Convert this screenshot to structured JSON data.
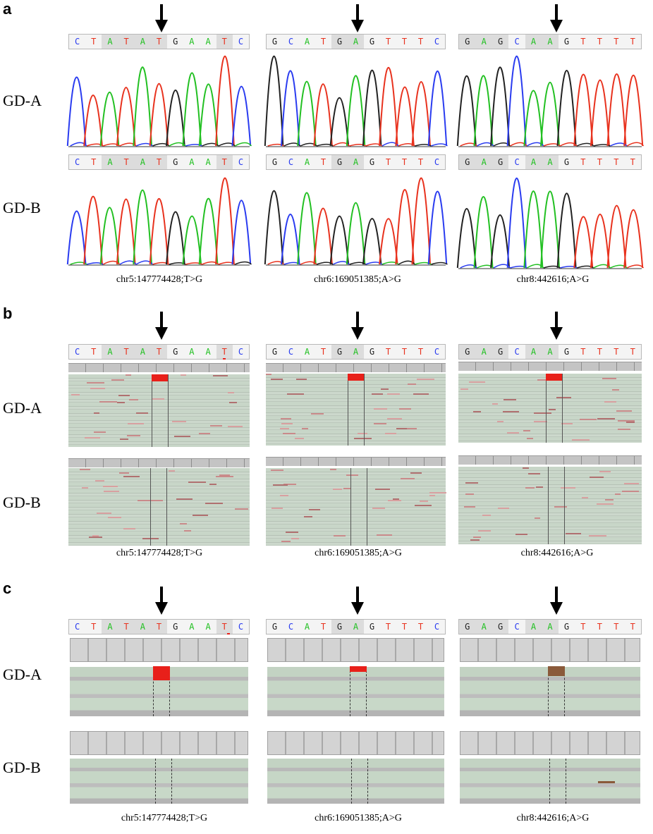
{
  "panel_letters": {
    "a": "a",
    "b": "b",
    "c": "c"
  },
  "samples": {
    "a": "GD-A",
    "b": "GD-B"
  },
  "variants": [
    {
      "label": "chr5:147774428;T>G",
      "sequence": "CTATATGAATC"
    },
    {
      "label": "chr6:169051385;A>G",
      "sequence": "GCATGAGTTTC"
    },
    {
      "label": "chr8:442616;A>G",
      "sequence": "GAGCAAGTTTT"
    }
  ],
  "base_colors": {
    "A": "#22c022",
    "C": "#2a3cf0",
    "G": "#222222",
    "T": "#e8321e"
  },
  "mismatch_colors": {
    "alt": "#e8201a",
    "brown": "#8a5a3a"
  }
}
